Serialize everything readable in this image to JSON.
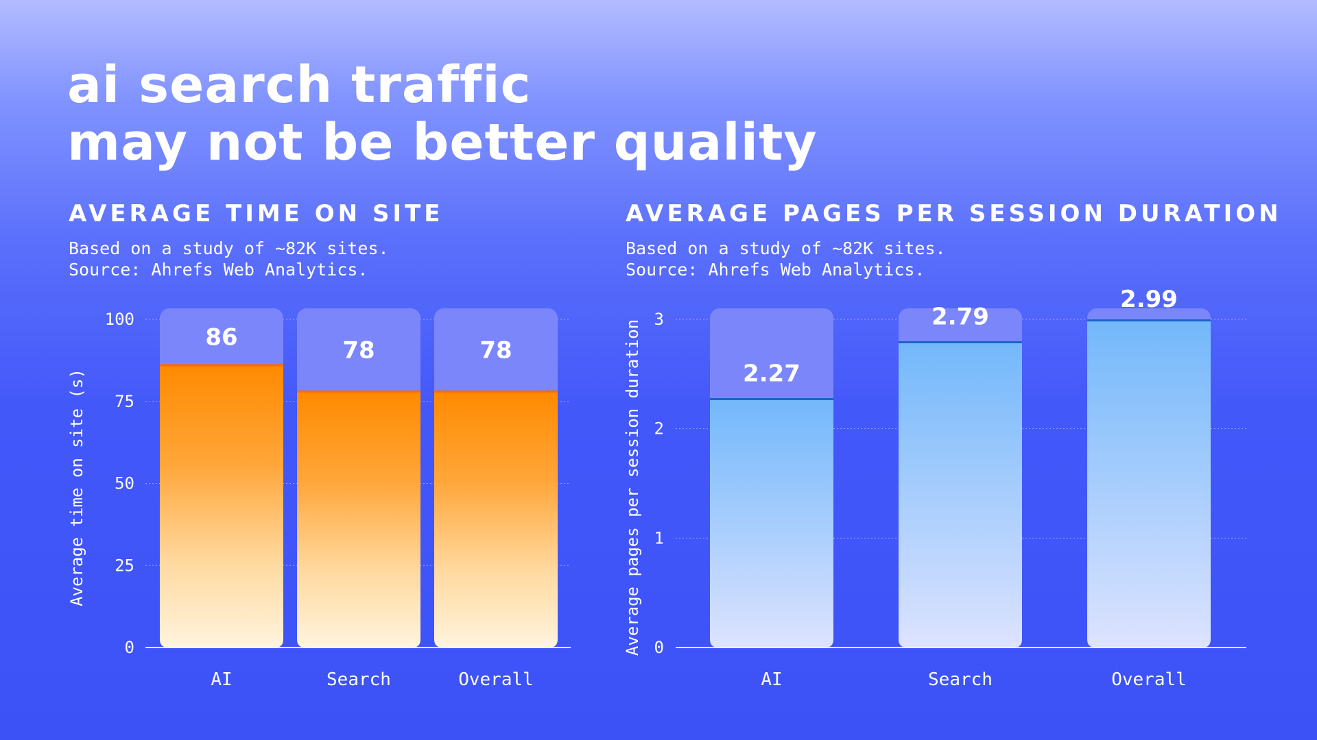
{
  "title": {
    "line1": "AI Search Traffic",
    "line2": "May Not Be Better Quality"
  },
  "colors": {
    "background_top": "#b3bcff",
    "background_bottom": "#3c52f7",
    "track": "#7b86fb",
    "orange_top": "#ff8a00",
    "orange_bottom": "#fff4de",
    "blue_top": "#73b8fb",
    "blue_bottom": "#dde3ff",
    "blue_line": "#1d63c8"
  },
  "chart_data": [
    {
      "type": "bar",
      "title": "AVERAGE TIME ON SITE",
      "subtitle_line1": "Based on a study of ~82K sites.",
      "subtitle_line2": "Source: Ahrefs Web Analytics.",
      "categories": [
        "AI",
        "Search",
        "Overall"
      ],
      "values": [
        86,
        78,
        78
      ],
      "value_labels": [
        "86",
        "78",
        "78"
      ],
      "xlabel": "",
      "ylabel": "Average time on site (s)",
      "ylim": [
        0,
        100
      ],
      "yticks": [
        0,
        25,
        50,
        75,
        100
      ],
      "ytick_labels": [
        "0",
        "25",
        "50",
        "75",
        "100"
      ],
      "grid": true
    },
    {
      "type": "bar",
      "title": "AVERAGE PAGES PER SESSION DURATION",
      "subtitle_line1": "Based on a study of ~82K sites.",
      "subtitle_line2": "Source: Ahrefs Web Analytics.",
      "categories": [
        "AI",
        "Search",
        "Overall"
      ],
      "values": [
        2.27,
        2.79,
        2.99
      ],
      "value_labels": [
        "2.27",
        "2.79",
        "2.99"
      ],
      "xlabel": "",
      "ylabel": "Average pages per session duration",
      "ylim": [
        0,
        3
      ],
      "yticks": [
        0,
        1,
        2,
        3
      ],
      "ytick_labels": [
        "0",
        "1",
        "2",
        "3"
      ],
      "grid": true
    }
  ]
}
